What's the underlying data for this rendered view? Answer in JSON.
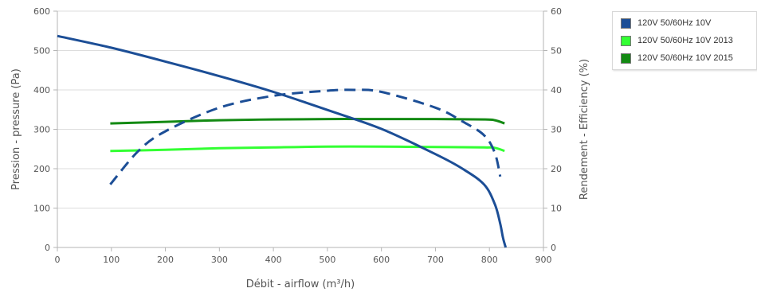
{
  "chart_data": {
    "type": "line",
    "xlabel": "Débit - airflow (m³/h)",
    "ylabel": "Pression - pressure (Pa)",
    "y2label": "Rendement - Efficiency (%)",
    "xlim": [
      0,
      900
    ],
    "ylim": [
      0,
      600
    ],
    "y2lim": [
      0,
      60
    ],
    "xticks": [
      0,
      100,
      200,
      300,
      400,
      500,
      600,
      700,
      800,
      900
    ],
    "yticks": [
      0,
      100,
      200,
      300,
      400,
      500,
      600
    ],
    "y2ticks": [
      0,
      10,
      20,
      30,
      40,
      50,
      60
    ],
    "grid": true,
    "legend_position": "top-right",
    "series": [
      {
        "name": "120V 50/60Hz 10V",
        "axis": "left",
        "color": "#1c4e96",
        "style": "solid",
        "x": [
          0,
          100,
          200,
          300,
          400,
          500,
          600,
          700,
          750,
          790,
          810,
          820,
          825,
          830
        ],
        "y": [
          537,
          507,
          472,
          435,
          395,
          349,
          301,
          237,
          200,
          160,
          110,
          60,
          25,
          0
        ]
      },
      {
        "name": "120V 50/60Hz 10V",
        "axis": "right",
        "color": "#1c4e96",
        "style": "dashed",
        "x": [
          98,
          150,
          200,
          300,
          400,
          500,
          550,
          600,
          700,
          750,
          790,
          810,
          820
        ],
        "y": [
          16,
          24.5,
          29.5,
          35.5,
          38.5,
          39.8,
          40,
          39.5,
          35.5,
          32,
          28.5,
          24,
          18
        ]
      },
      {
        "name": "120V 50/60Hz 10V 2013",
        "axis": "right",
        "color": "#33ff33",
        "style": "solid",
        "x": [
          98,
          200,
          300,
          400,
          500,
          600,
          700,
          790,
          810,
          828
        ],
        "y": [
          24.5,
          24.8,
          25.2,
          25.4,
          25.6,
          25.6,
          25.5,
          25.4,
          25.3,
          24.5
        ]
      },
      {
        "name": "120V 50/60Hz 10V 2015",
        "axis": "right",
        "color": "#138a13",
        "style": "solid",
        "x": [
          98,
          200,
          300,
          400,
          500,
          600,
          700,
          790,
          810,
          828
        ],
        "y": [
          31.5,
          31.9,
          32.3,
          32.5,
          32.6,
          32.6,
          32.6,
          32.5,
          32.3,
          31.5
        ]
      }
    ]
  },
  "legend": {
    "items": [
      {
        "label": "120V 50/60Hz 10V",
        "color": "#1c4e96"
      },
      {
        "label": "120V 50/60Hz 10V 2013",
        "color": "#33ff33"
      },
      {
        "label": "120V 50/60Hz 10V 2015",
        "color": "#138a13"
      }
    ]
  }
}
